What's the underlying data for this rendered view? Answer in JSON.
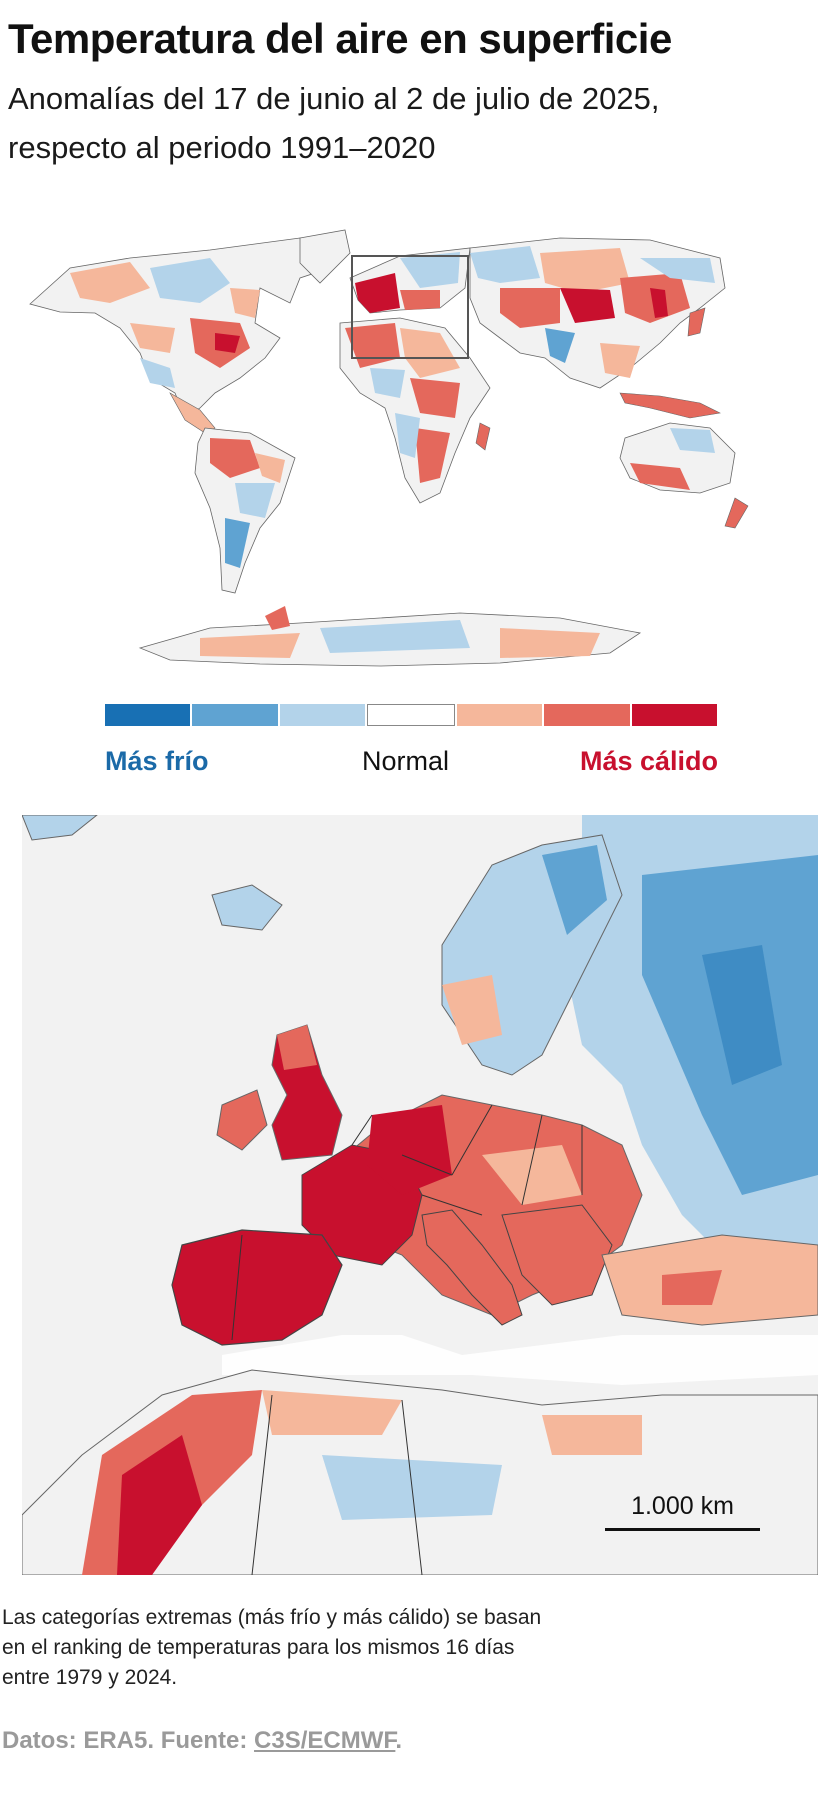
{
  "title": "Temperatura del aire en superficie",
  "subtitle": "Anomalías del 17 de junio al 2 de julio de 2025, respecto al periodo 1991–2020",
  "legend": {
    "swatches": [
      {
        "color": "#1870b4"
      },
      {
        "color": "#5fa3d2"
      },
      {
        "color": "#b3d3ea"
      },
      {
        "color": "#ffffff"
      },
      {
        "color": "#f5b79b"
      },
      {
        "color": "#e4685c"
      },
      {
        "color": "#c8102e"
      }
    ],
    "cold_label": "Más frío",
    "normal_label": "Normal",
    "warm_label": "Más cálido"
  },
  "colors": {
    "much_colder": "#1870b4",
    "colder": "#5fa3d2",
    "slightly_colder": "#b3d3ea",
    "normal": "#f4f4f4",
    "slightly_warmer": "#f5b79b",
    "warmer": "#e4685c",
    "much_warmer": "#c8102e"
  },
  "scale_bar": {
    "label": "1.000 km"
  },
  "note": "Las categorías extremas (más frío y más cálido) se basan en el ranking de temperaturas para los mismos 16 días entre 1979 y 2024.",
  "source": {
    "prefix": "Datos: ERA5. Fuente: ",
    "link_text": "C3S/ECMWF",
    "suffix": "."
  }
}
